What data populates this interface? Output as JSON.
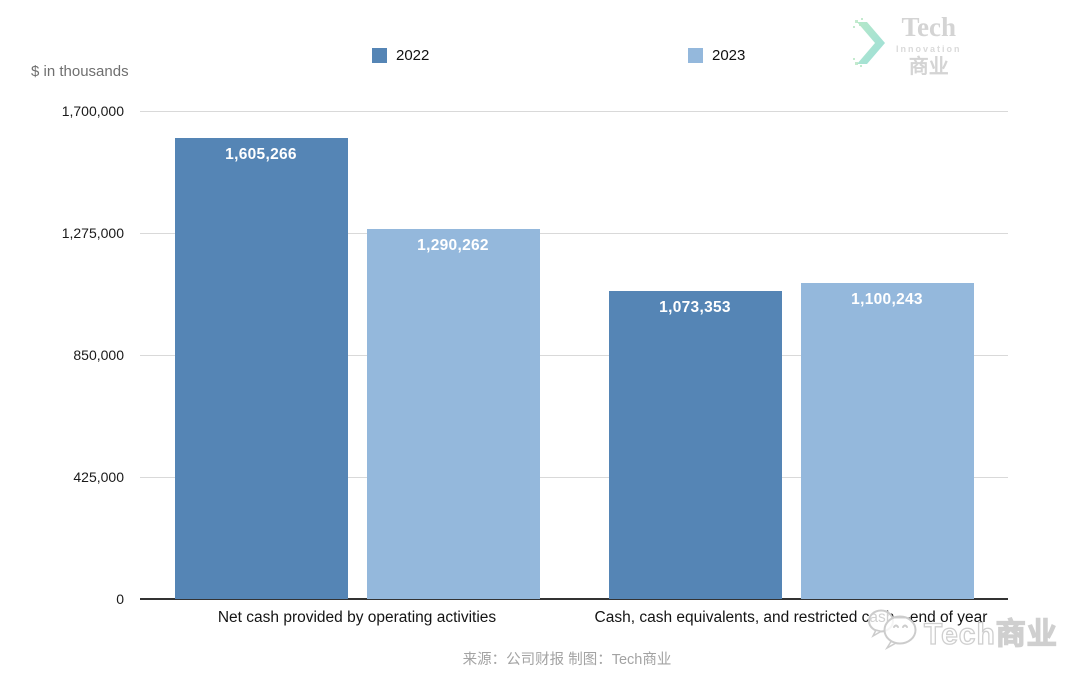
{
  "header": {
    "units_label": "$ in thousands",
    "legend": [
      {
        "label": "2022",
        "color": "#5585b5"
      },
      {
        "label": "2023",
        "color": "#94b8dc"
      }
    ]
  },
  "logo": {
    "line1": "Tech",
    "line2": "Innovation",
    "line3": "商业",
    "icon": "chevron-pixel-arrow-icon"
  },
  "chart_data": {
    "type": "bar",
    "categories": [
      "Net cash provided by operating activities",
      "Cash, cash equivalents, and restricted cash—end of year"
    ],
    "series": [
      {
        "name": "2022",
        "color": "#5585b5",
        "values": [
          1605266,
          1073353
        ],
        "formatted": [
          "1,605,266",
          "1,073,353"
        ]
      },
      {
        "name": "2023",
        "color": "#94b8dc",
        "values": [
          1290262,
          1100243
        ],
        "formatted": [
          "1,290,262",
          "1,100,243"
        ]
      }
    ],
    "ylabel": "$ in thousands",
    "ylim": [
      0,
      1700000
    ],
    "yticks": [
      0,
      425000,
      850000,
      1275000,
      1700000
    ],
    "ytick_labels": [
      "0",
      "425,000",
      "850,000",
      "1,275,000",
      "1,700,000"
    ],
    "grid": true,
    "legend_position": "top"
  },
  "footer": {
    "source_text": "来源：公司财报 制图：Tech商业"
  },
  "watermark": {
    "icon": "wechat-icon",
    "text": "Tech商业"
  }
}
